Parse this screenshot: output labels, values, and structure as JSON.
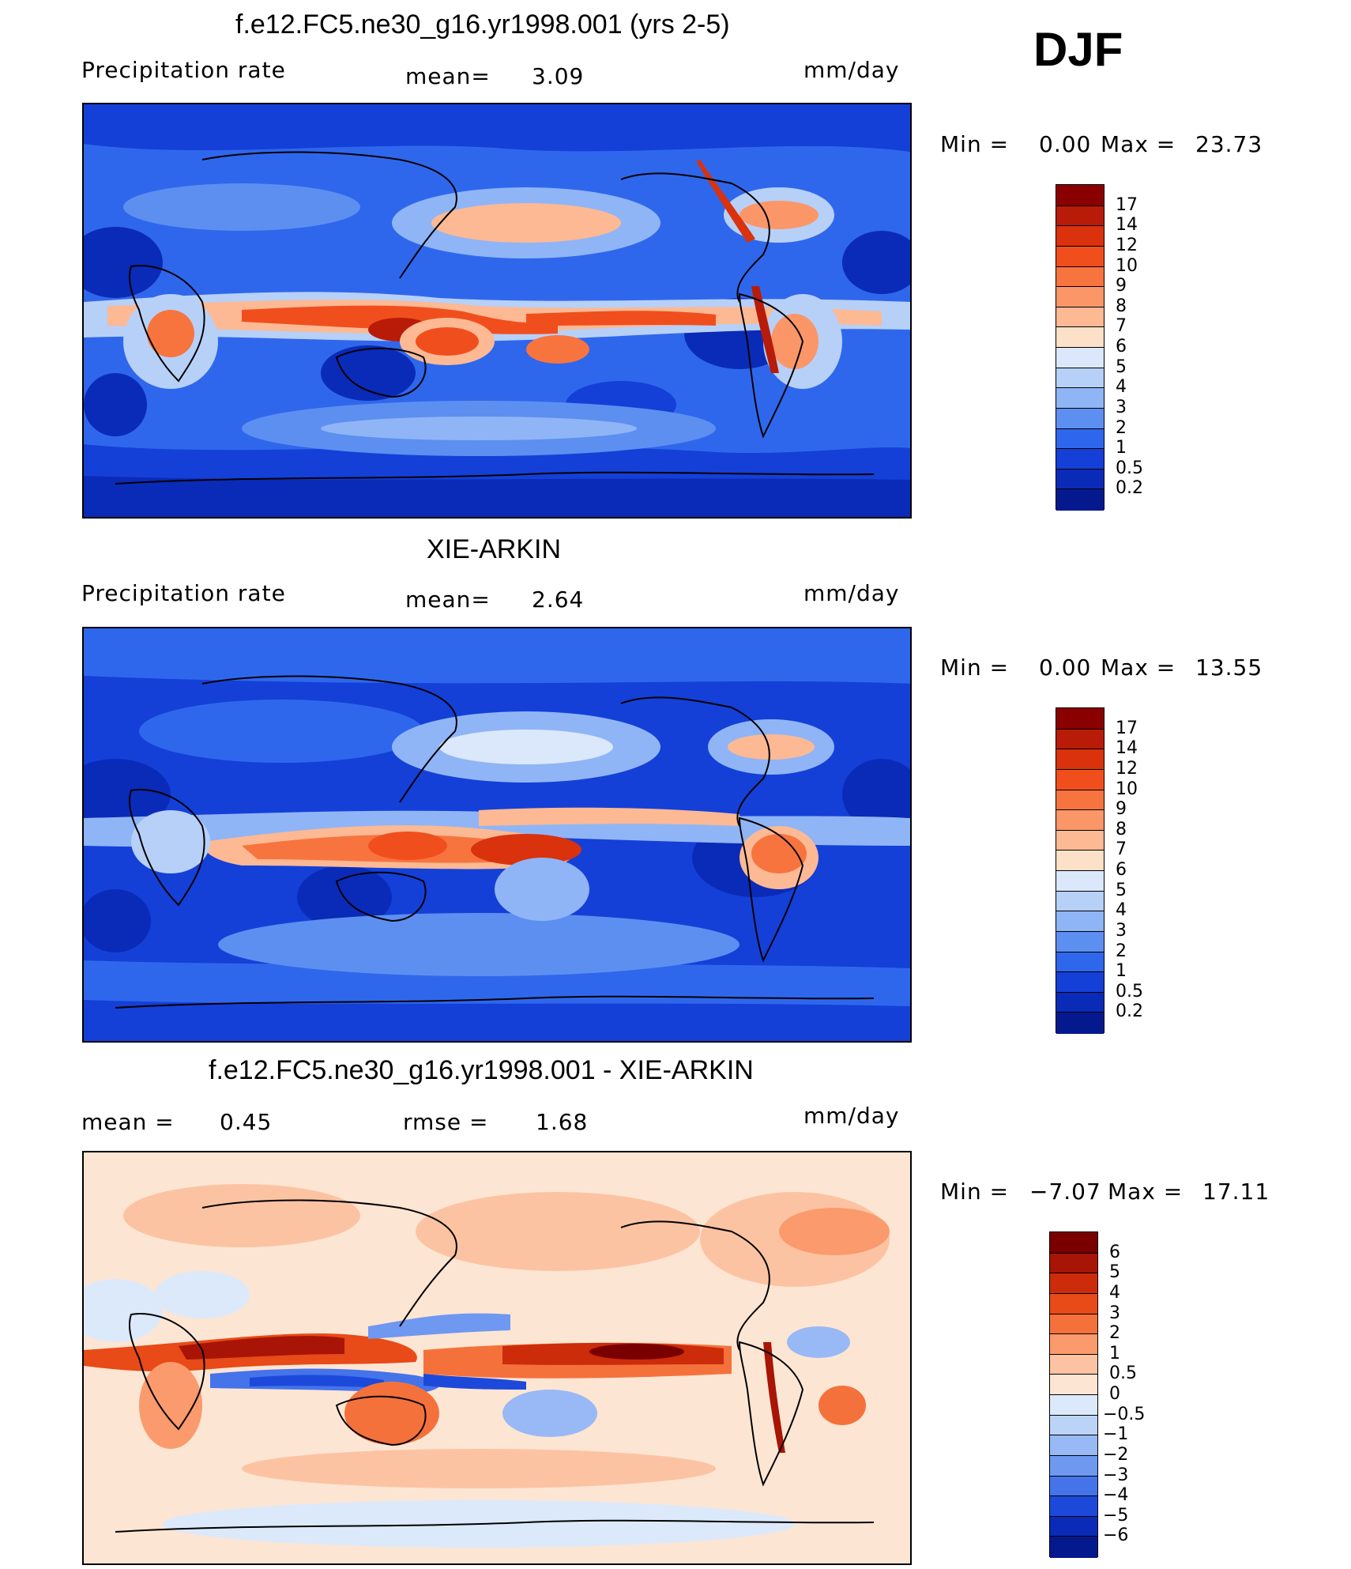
{
  "season": "DJF",
  "panels": [
    {
      "title": "f.e12.FC5.ne30_g16.yr1998.001 (yrs 2-5)",
      "left_label": "Precipitation rate",
      "stat_label": "mean=",
      "stat_value": "3.09",
      "units": "mm/day",
      "min_label": "Min =",
      "min_value": "0.00",
      "max_label": "Max =",
      "max_value": "23.73",
      "colorbar": {
        "levels": [
          "17",
          "14",
          "12",
          "10",
          "9",
          "8",
          "7",
          "6",
          "5",
          "4",
          "3",
          "2",
          "1",
          "0.5",
          "0.2"
        ],
        "colors": [
          "#8a0000",
          "#b81c08",
          "#d9320c",
          "#f04f1d",
          "#f7743f",
          "#fb9668",
          "#fcb994",
          "#fde0c8",
          "#dbe8fb",
          "#b7d0f8",
          "#8fb5f6",
          "#5d8ff1",
          "#2f67ec",
          "#1440d8",
          "#0a2bb8",
          "#05198e"
        ]
      }
    },
    {
      "title": "XIE-ARKIN",
      "left_label": "Precipitation rate",
      "stat_label": "mean=",
      "stat_value": "2.64",
      "units": "mm/day",
      "min_label": "Min =",
      "min_value": "0.00",
      "max_label": "Max =",
      "max_value": "13.55",
      "colorbar": {
        "levels": [
          "17",
          "14",
          "12",
          "10",
          "9",
          "8",
          "7",
          "6",
          "5",
          "4",
          "3",
          "2",
          "1",
          "0.5",
          "0.2"
        ],
        "colors": [
          "#8a0000",
          "#b81c08",
          "#d9320c",
          "#f04f1d",
          "#f7743f",
          "#fb9668",
          "#fcb994",
          "#fde0c8",
          "#dbe8fb",
          "#b7d0f8",
          "#8fb5f6",
          "#5d8ff1",
          "#2f67ec",
          "#1440d8",
          "#0a2bb8",
          "#05198e"
        ]
      }
    },
    {
      "title": "f.e12.FC5.ne30_g16.yr1998.001 - XIE-ARKIN",
      "left_label": "mean =",
      "left_value": "0.45",
      "stat_label": "rmse =",
      "stat_value": "1.68",
      "units": "mm/day",
      "min_label": "Min =",
      "min_value": "−7.07",
      "max_label": "Max =",
      "max_value": "17.11",
      "colorbar": {
        "levels": [
          "6",
          "5",
          "4",
          "3",
          "2",
          "1",
          "0.5",
          "0",
          "−0.5",
          "−1",
          "−2",
          "−3",
          "−4",
          "−5",
          "−6"
        ],
        "colors": [
          "#7a0000",
          "#a81405",
          "#cc2c0a",
          "#e84a18",
          "#f5713b",
          "#fb9a6c",
          "#fcc3a3",
          "#fde5d3",
          "#dce9fb",
          "#bcd3f8",
          "#98b9f5",
          "#6f98f0",
          "#4573ea",
          "#1d49db",
          "#0a2bb8",
          "#05198e"
        ]
      }
    }
  ]
}
